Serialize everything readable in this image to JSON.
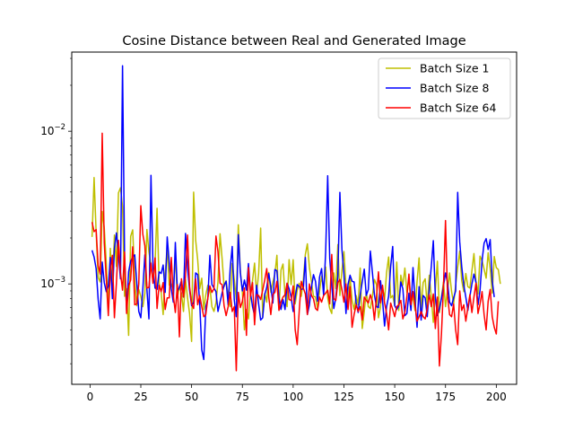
{
  "chart_data": {
    "type": "line",
    "title": "Cosine Distance between Real and Generated Image",
    "xlabel": "",
    "ylabel": "",
    "xlim": [
      -9,
      210
    ],
    "ylim": [
      0.00022,
      0.033
    ],
    "yscale": "log",
    "grid": false,
    "legend_position": "top-right",
    "x_ticks": [
      0,
      25,
      50,
      75,
      100,
      125,
      150,
      175,
      200
    ],
    "x_tick_labels": [
      "0",
      "25",
      "50",
      "75",
      "100",
      "125",
      "150",
      "175",
      "200"
    ],
    "y_ticks": [
      0.001,
      0.01
    ],
    "y_tick_labels": [
      {
        "base": "10",
        "exp": "−3"
      },
      {
        "base": "10",
        "exp": "−2"
      }
    ],
    "x_range": [
      1,
      200
    ],
    "series": [
      {
        "name": "Batch Size 1",
        "color": "#bfbf00",
        "values": [
          0.00203,
          0.00497,
          0.00219,
          0.0011,
          0.00103,
          0.00298,
          0.00233,
          0.00138,
          0.00068,
          0.00171,
          0.00091,
          0.00209,
          0.0013,
          0.00395,
          0.00426,
          0.0032,
          0.00083,
          0.00093,
          0.00046,
          0.00205,
          0.00226,
          0.00108,
          0.00072,
          0.00092,
          0.00083,
          0.00071,
          0.00087,
          0.00227,
          0.00162,
          0.00134,
          0.00105,
          0.00136,
          0.00313,
          0.00101,
          0.00089,
          0.00063,
          0.00118,
          0.00167,
          0.00098,
          0.001,
          0.00093,
          0.00151,
          0.00081,
          0.00096,
          0.00087,
          0.00066,
          0.00107,
          0.00081,
          0.00064,
          0.00042,
          0.00399,
          0.00193,
          0.00144,
          0.00093,
          0.00109,
          0.00068,
          0.00085,
          0.00098,
          0.00095,
          0.00071,
          0.00066,
          0.00075,
          0.00104,
          0.00213,
          0.00147,
          0.00096,
          0.00105,
          0.00083,
          0.00071,
          0.00136,
          0.00107,
          0.00079,
          0.00244,
          0.00121,
          0.00088,
          0.0005,
          0.00068,
          0.00059,
          0.00089,
          0.00105,
          0.00137,
          0.00086,
          0.00117,
          0.00232,
          0.00061,
          0.00087,
          0.00076,
          0.00119,
          0.00088,
          0.00103,
          0.00116,
          0.00154,
          0.00068,
          0.00123,
          0.00135,
          0.00084,
          0.00071,
          0.00144,
          0.00099,
          0.00144,
          0.00074,
          0.00091,
          0.00101,
          0.00083,
          0.00106,
          0.00156,
          0.00183,
          0.00128,
          0.00104,
          0.00083,
          0.00082,
          0.00069,
          0.0009,
          0.00112,
          0.00093,
          0.00129,
          0.00081,
          0.00069,
          0.00064,
          0.00118,
          0.00093,
          0.00181,
          0.00084,
          0.00122,
          0.00163,
          0.00096,
          0.00075,
          0.00112,
          0.00078,
          0.00068,
          0.00084,
          0.00073,
          0.00127,
          0.00051,
          0.00066,
          0.00088,
          0.00071,
          0.00069,
          0.00083,
          0.00107,
          0.00099,
          0.0006,
          0.00071,
          0.00094,
          0.00079,
          0.00119,
          0.0015,
          0.00081,
          0.00084,
          0.00072,
          0.00139,
          0.00067,
          0.00114,
          0.00098,
          0.00127,
          0.00088,
          0.00109,
          0.00075,
          0.00082,
          0.00067,
          0.00104,
          0.00148,
          0.00068,
          0.00102,
          0.00108,
          0.00071,
          0.00114,
          0.00082,
          0.00056,
          0.00091,
          0.00141,
          0.00065,
          0.00082,
          0.00103,
          0.00071,
          0.0009,
          0.00118,
          0.00089,
          0.00074,
          0.00098,
          0.00129,
          0.00164,
          0.00105,
          0.00089,
          0.00117,
          0.00096,
          0.00094,
          0.00122,
          0.00158,
          0.00104,
          0.00086,
          0.00152,
          0.00142,
          0.00125,
          0.00109,
          0.0016,
          0.00126,
          0.00087,
          0.00151,
          0.00128,
          0.00124,
          0.001
        ]
      },
      {
        "name": "Batch Size 8",
        "color": "#0000ff",
        "values": [
          0.00166,
          0.0015,
          0.00126,
          0.00079,
          0.00059,
          0.00139,
          0.00102,
          0.00089,
          0.00097,
          0.00149,
          0.0008,
          0.00171,
          0.00216,
          0.00154,
          0.00108,
          0.02683,
          0.0015,
          0.00067,
          0.0012,
          0.00141,
          0.0015,
          0.00155,
          0.00103,
          0.00066,
          0.0006,
          0.00093,
          0.00155,
          0.00092,
          0.00059,
          0.00514,
          0.00129,
          0.00094,
          0.00092,
          0.0012,
          0.00117,
          0.00133,
          0.00088,
          0.00203,
          0.00138,
          0.00093,
          0.00076,
          0.00187,
          0.00089,
          0.00095,
          0.00105,
          0.00082,
          0.00214,
          0.00128,
          0.00091,
          0.00072,
          0.00076,
          0.00118,
          0.00115,
          0.00075,
          0.00037,
          0.00032,
          0.00071,
          0.0008,
          0.00154,
          0.00099,
          0.00094,
          0.00089,
          0.00066,
          0.00076,
          0.00087,
          0.00098,
          0.00104,
          0.00073,
          0.00126,
          0.00176,
          0.00079,
          0.00061,
          0.0021,
          0.00118,
          0.0009,
          0.00106,
          0.00091,
          0.00136,
          0.00087,
          0.00071,
          0.00062,
          0.00098,
          0.00074,
          0.00058,
          0.0006,
          0.00085,
          0.00095,
          0.00117,
          0.00096,
          0.00075,
          0.00124,
          0.00122,
          0.00081,
          0.00068,
          0.00079,
          0.00068,
          0.00101,
          0.00093,
          0.00082,
          0.00066,
          0.00082,
          0.00099,
          0.00096,
          0.00092,
          0.00093,
          0.00149,
          0.00063,
          0.00073,
          0.00095,
          0.00115,
          0.00104,
          0.00077,
          0.00111,
          0.00126,
          0.00084,
          0.00162,
          0.00511,
          0.00147,
          0.00097,
          0.00069,
          0.00081,
          0.00113,
          0.00398,
          0.00169,
          0.00115,
          0.00064,
          0.00099,
          0.00114,
          0.00104,
          0.00103,
          0.00075,
          0.00065,
          0.00085,
          0.00103,
          0.00125,
          0.00084,
          0.00092,
          0.00164,
          0.00119,
          0.00085,
          0.00071,
          0.0007,
          0.00105,
          0.00078,
          0.00053,
          0.00071,
          0.00083,
          0.0013,
          0.00176,
          0.00072,
          0.00068,
          0.00072,
          0.00103,
          0.00093,
          0.00062,
          0.00064,
          0.00087,
          0.00067,
          0.00128,
          0.00078,
          0.00052,
          0.00096,
          0.00058,
          0.00084,
          0.00081,
          0.00061,
          0.00092,
          0.0013,
          0.00192,
          0.00082,
          0.00062,
          0.00069,
          0.0008,
          0.00097,
          0.00118,
          0.00102,
          0.00076,
          0.00072,
          0.00081,
          0.0009,
          0.00398,
          0.00189,
          0.00129,
          0.00098,
          0.00082,
          0.00067,
          0.00083,
          0.001,
          0.00116,
          0.00102,
          0.00073,
          0.00091,
          0.00142,
          0.00185,
          0.00198,
          0.00168,
          0.00195,
          0.00105,
          0.00082
        ]
      },
      {
        "name": "Batch Size 64",
        "color": "#ff0000",
        "values": [
          0.00254,
          0.0022,
          0.00227,
          0.00132,
          0.00116,
          0.0097,
          0.00186,
          0.00107,
          0.00062,
          0.00121,
          0.00154,
          0.0006,
          0.00102,
          0.00193,
          0.00118,
          0.00091,
          0.00162,
          0.00064,
          0.00097,
          0.00106,
          0.00175,
          0.00073,
          0.00074,
          0.001,
          0.00325,
          0.00211,
          0.00178,
          0.00094,
          0.00095,
          0.00137,
          0.00101,
          0.00148,
          0.00069,
          0.00098,
          0.00089,
          0.00102,
          0.00068,
          0.00081,
          0.00081,
          0.00149,
          0.00084,
          0.00065,
          0.00099,
          0.00045,
          0.00108,
          0.00082,
          0.00112,
          0.00209,
          0.00096,
          0.00074,
          0.00069,
          0.00108,
          0.00073,
          0.00084,
          0.00071,
          0.00061,
          0.00063,
          0.00081,
          0.00097,
          0.00088,
          0.00093,
          0.00206,
          0.00162,
          0.00101,
          0.00099,
          0.00072,
          0.00062,
          0.00071,
          0.00088,
          0.00066,
          0.00071,
          0.00027,
          0.00088,
          0.0007,
          0.00077,
          0.00094,
          0.00046,
          0.00128,
          0.00083,
          0.00102,
          0.00054,
          0.00085,
          0.00084,
          0.00079,
          0.00091,
          0.00106,
          0.00126,
          0.00082,
          0.00063,
          0.00085,
          0.00088,
          0.00104,
          0.00067,
          0.00076,
          0.00082,
          0.00085,
          0.00101,
          0.00079,
          0.00078,
          0.00097,
          0.0005,
          0.0004,
          0.00067,
          0.00104,
          0.00094,
          0.00086,
          0.00063,
          0.001,
          0.00084,
          0.0008,
          0.00069,
          0.00067,
          0.00082,
          0.00076,
          0.00084,
          0.00087,
          0.00091,
          0.00074,
          0.00156,
          0.0008,
          0.00078,
          0.00102,
          0.00107,
          0.00092,
          0.00076,
          0.001,
          0.00068,
          0.00096,
          0.00052,
          0.00063,
          0.00073,
          0.00066,
          0.00071,
          0.00058,
          0.00082,
          0.00078,
          0.00075,
          0.00085,
          0.00077,
          0.00058,
          0.00081,
          0.0012,
          0.00075,
          0.00098,
          0.00075,
          0.00064,
          0.0005,
          0.00075,
          0.00068,
          0.00061,
          0.00071,
          0.00073,
          0.00078,
          0.00059,
          0.00065,
          0.00083,
          0.00116,
          0.00073,
          0.00089,
          0.00072,
          0.00057,
          0.00061,
          0.00066,
          0.00061,
          0.00059,
          0.00069,
          0.00085,
          0.00071,
          0.00086,
          0.00051,
          0.00082,
          0.00029,
          0.00047,
          0.00096,
          0.0026,
          0.00084,
          0.00063,
          0.00061,
          0.00074,
          0.0005,
          0.0004,
          0.0009,
          0.00067,
          0.00073,
          0.00057,
          0.0007,
          0.00085,
          0.00065,
          0.00082,
          0.00101,
          0.00064,
          0.00074,
          0.00089,
          0.00063,
          0.0005,
          0.00077,
          0.00092,
          0.00061,
          0.00052,
          0.00047,
          0.00077
        ]
      }
    ]
  }
}
